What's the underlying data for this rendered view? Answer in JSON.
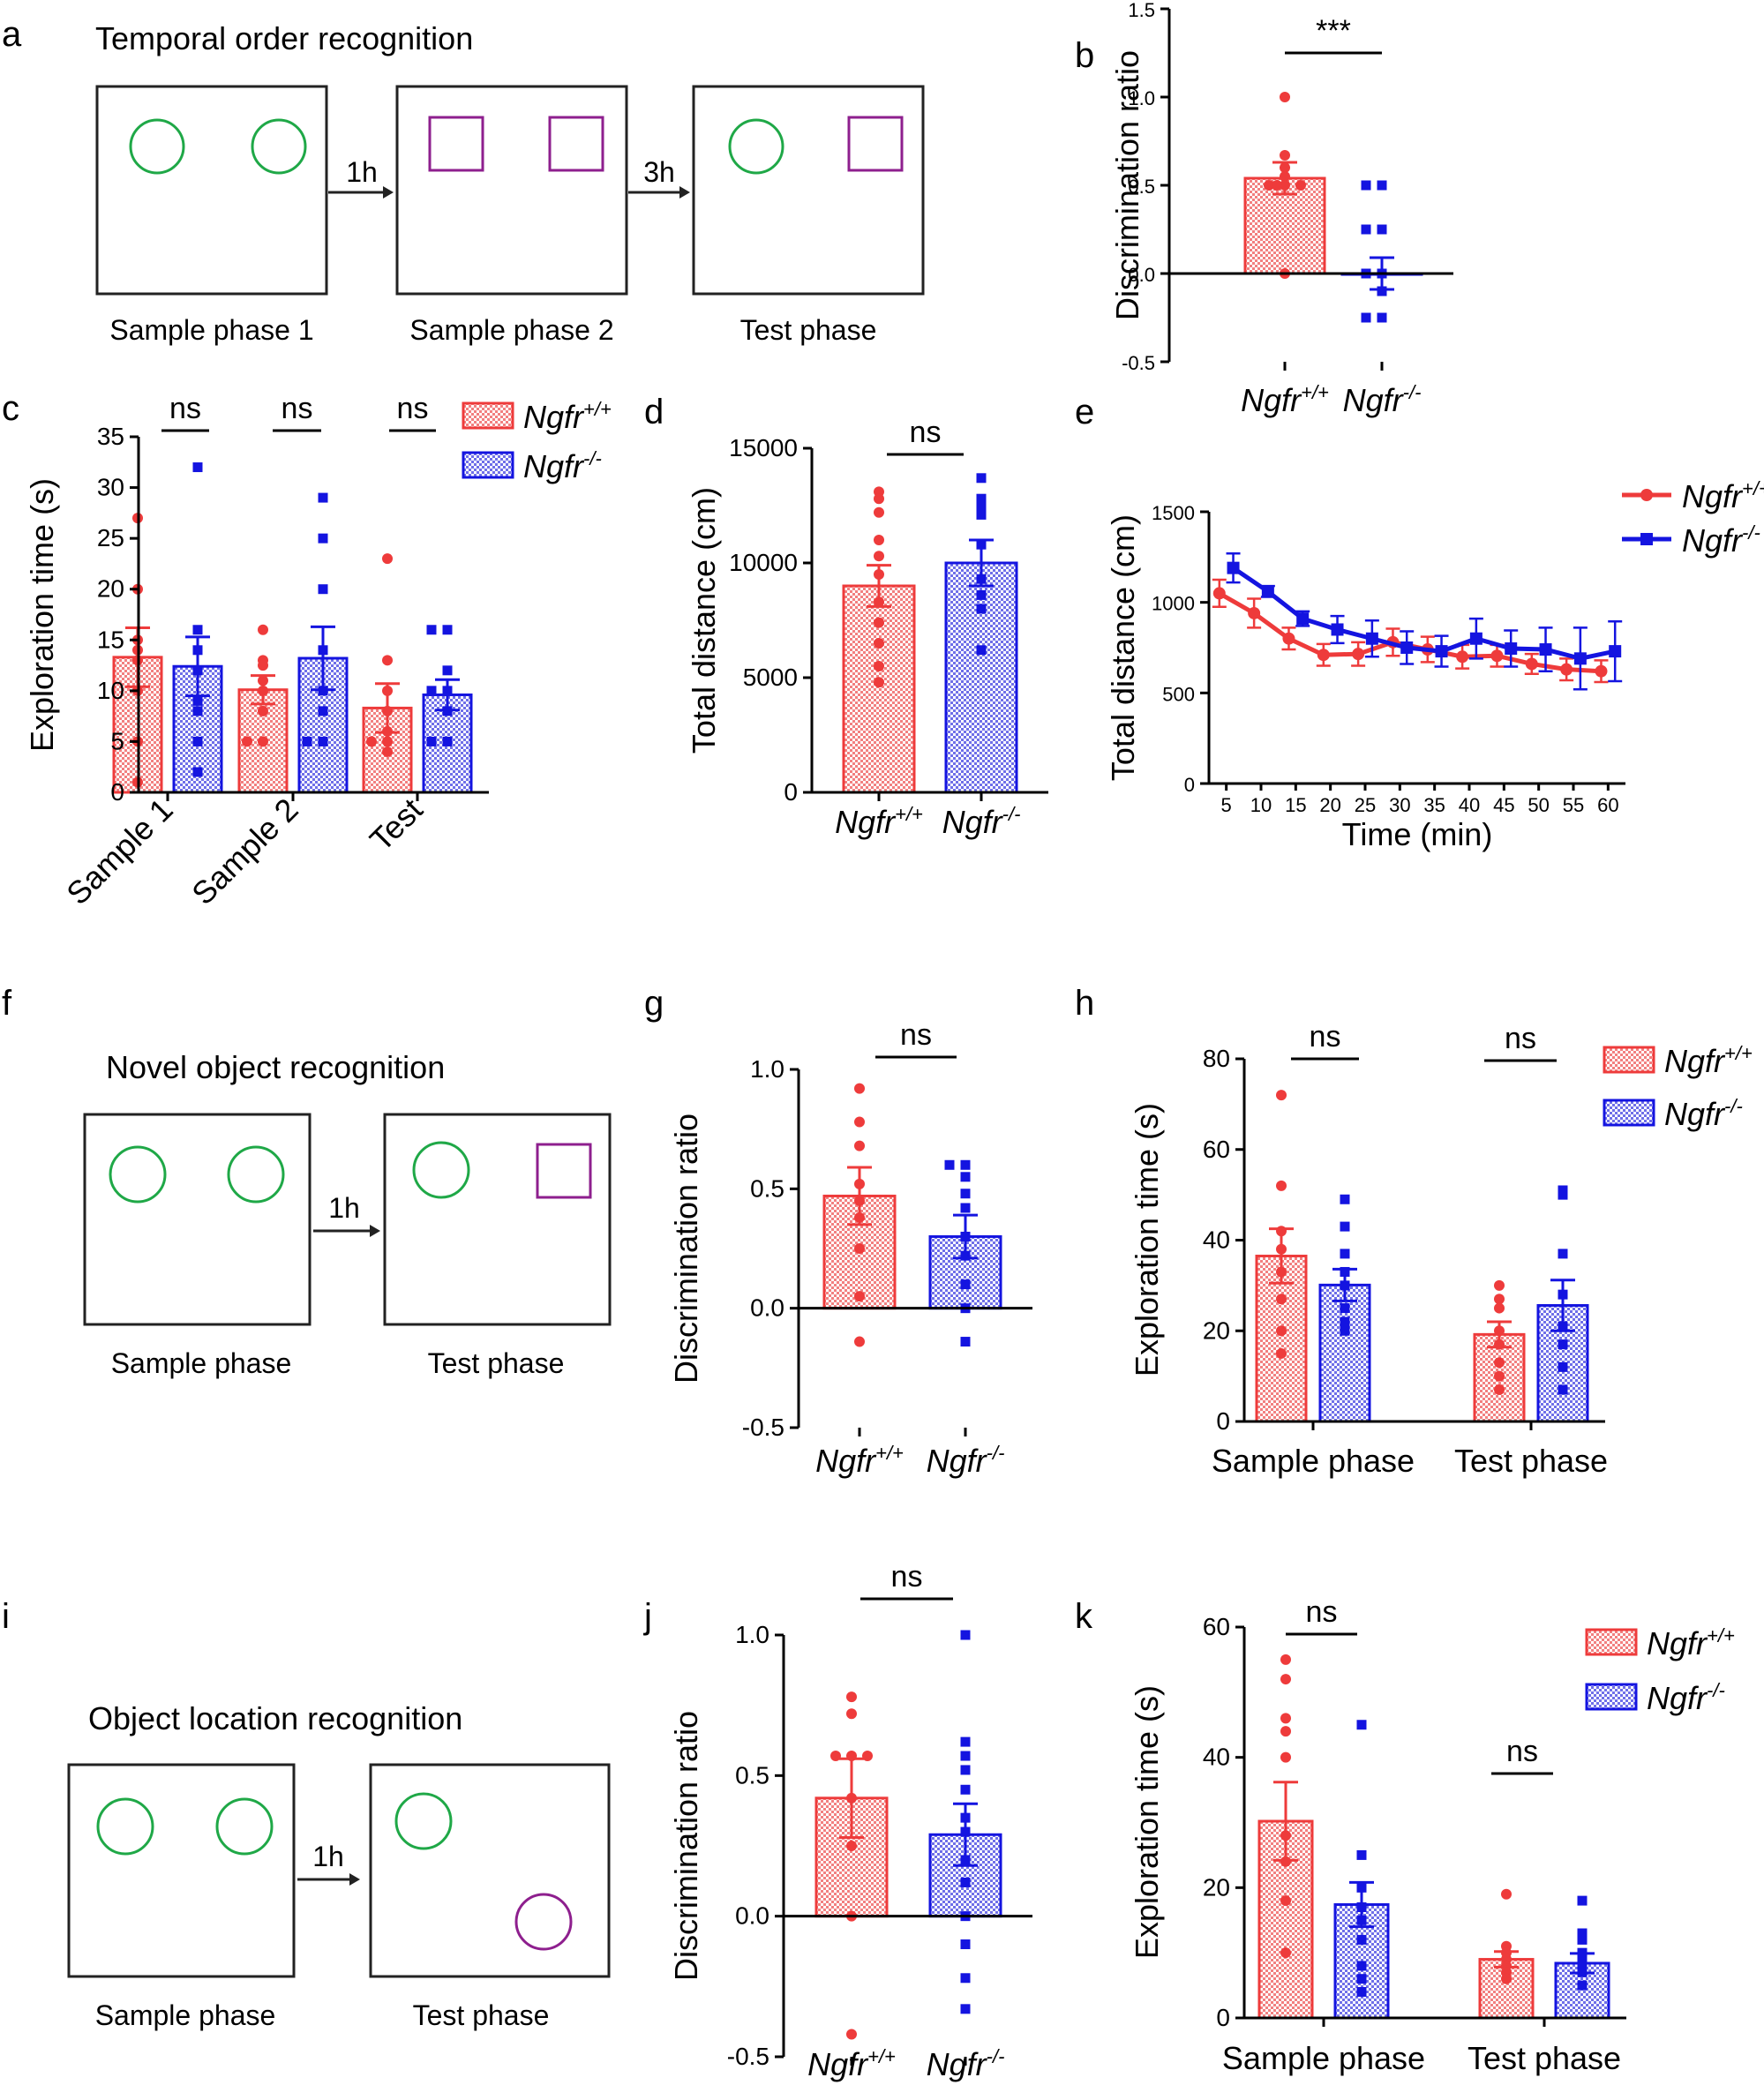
{
  "colors": {
    "wt": "#EE3B3B",
    "ko": "#1414E0",
    "circle": "#1FA847",
    "square": "#8E1F8E",
    "axis": "#000000"
  },
  "schematics": {
    "a": {
      "letter": "a",
      "title": "Temporal order recognition",
      "boxes": [
        {
          "label": "Sample phase 1",
          "objects": [
            "circle-green",
            "circle-green"
          ]
        },
        {
          "label": "Sample phase 2",
          "objects": [
            "square-purple",
            "square-purple"
          ]
        },
        {
          "label": "Test phase",
          "objects": [
            "circle-green",
            "square-purple"
          ]
        }
      ],
      "arrows": [
        "1h",
        "3h"
      ]
    },
    "f": {
      "letter": "f",
      "title": "Novel object recognition",
      "boxes": [
        {
          "label": "Sample phase",
          "objects": [
            "circle-green",
            "circle-green"
          ]
        },
        {
          "label": "Test phase",
          "objects": [
            "circle-green",
            "square-purple"
          ]
        }
      ],
      "arrows": [
        "1h"
      ]
    },
    "i": {
      "letter": "i",
      "title": "Object location recognition",
      "boxes": [
        {
          "label": "Sample phase",
          "objects": [
            "circle-green",
            "circle-green"
          ]
        },
        {
          "label": "Test phase",
          "objects": [
            "circle-green",
            "circle-purple-moved"
          ]
        }
      ],
      "arrows": [
        "1h"
      ]
    }
  },
  "legend": {
    "base": "Ngfr",
    "wt_sup": "+/+",
    "ko_sup": "-/-"
  },
  "chart_data": [
    {
      "id": "b",
      "letter": "b",
      "type": "bar",
      "ylabel": "Discrimination ratio",
      "ylim": [
        -0.5,
        1.5
      ],
      "yticks": [
        -0.5,
        0.0,
        0.5,
        1.0,
        1.5
      ],
      "ytick_labels": [
        "-0.5",
        "0.0",
        "0.5",
        "1.0",
        "1.5"
      ],
      "categories": [
        "Ngfr+/+",
        "Ngfr-/-"
      ],
      "series": [
        {
          "name": "Ngfr+/+",
          "mean": 0.54,
          "sem": 0.09,
          "points": [
            1.0,
            0.67,
            0.6,
            0.55,
            0.5,
            0.5,
            0.5,
            0.5,
            0.0
          ]
        },
        {
          "name": "Ngfr-/-",
          "mean": 0.0,
          "sem": 0.09,
          "points": [
            0.5,
            0.5,
            0.25,
            0.25,
            0.0,
            0.0,
            -0.1,
            -0.25,
            -0.25
          ]
        }
      ],
      "significance": [
        {
          "text": "***"
        }
      ]
    },
    {
      "id": "c",
      "letter": "c",
      "type": "bar",
      "ylabel": "Exploration time (s)",
      "ylim": [
        0,
        35
      ],
      "yticks": [
        0,
        5,
        10,
        15,
        20,
        25,
        30,
        35
      ],
      "ytick_labels": [
        "0",
        "5",
        "10",
        "15",
        "20",
        "25",
        "30",
        "35"
      ],
      "categories": [
        "Sample 1",
        "Sample 2",
        "Test"
      ],
      "series": [
        {
          "name": "Ngfr+/+",
          "values": [
            13.3,
            10.1,
            8.3
          ],
          "sem": [
            2.9,
            1.4,
            2.4
          ],
          "points": [
            [
              27,
              20,
              15,
              14,
              13,
              10,
              5,
              1
            ],
            [
              16,
              13,
              12.5,
              11,
              10,
              8,
              5,
              5
            ],
            [
              23,
              13,
              10,
              8,
              6,
              5,
              5,
              4
            ]
          ]
        },
        {
          "name": "Ngfr-/-",
          "values": [
            12.4,
            13.2,
            9.6
          ],
          "sem": [
            2.9,
            3.1,
            1.5
          ],
          "points": [
            [
              32,
              16,
              14,
              12,
              9,
              8,
              5,
              2
            ],
            [
              29,
              25,
              20,
              14,
              10,
              8,
              5,
              5
            ],
            [
              16,
              16,
              12,
              10,
              10,
              8,
              5,
              5
            ]
          ]
        }
      ],
      "significance": [
        {
          "text": "ns"
        },
        {
          "text": "ns"
        },
        {
          "text": "ns"
        }
      ]
    },
    {
      "id": "d",
      "letter": "d",
      "type": "bar",
      "ylabel": "Total distance (cm)",
      "ylim": [
        0,
        15000
      ],
      "yticks": [
        0,
        5000,
        10000,
        15000
      ],
      "ytick_labels": [
        "0",
        "5000",
        "10000",
        "15000"
      ],
      "categories": [
        "Ngfr+/+",
        "Ngfr-/-"
      ],
      "series": [
        {
          "name": "Ngfr+/+",
          "mean": 9000,
          "sem": 900,
          "points": [
            13100,
            12800,
            12200,
            11000,
            10300,
            9500,
            8300,
            7400,
            6500,
            5500,
            4800
          ]
        },
        {
          "name": "Ngfr-/-",
          "mean": 10000,
          "sem": 1000,
          "points": [
            13700,
            12800,
            12500,
            12100,
            10800,
            9300,
            8000,
            8600,
            6200
          ]
        }
      ],
      "significance": [
        {
          "text": "ns"
        }
      ]
    },
    {
      "id": "e",
      "letter": "e",
      "type": "line",
      "ylabel": "Total distance (cm)",
      "xlabel": "Time (min)",
      "ylim": [
        0,
        1500
      ],
      "yticks": [
        0,
        500,
        1000,
        1500
      ],
      "ytick_labels": [
        "0",
        "500",
        "1000",
        "1500"
      ],
      "xlim": [
        2.5,
        62.5
      ],
      "xticks": [
        5,
        10,
        15,
        20,
        25,
        30,
        35,
        40,
        45,
        50,
        55,
        60
      ],
      "xtick_labels": [
        "5",
        "10",
        "15",
        "20",
        "25",
        "30",
        "35",
        "40",
        "45",
        "50",
        "55",
        "60"
      ],
      "series": [
        {
          "name": "Ngfr+/+",
          "x": [
            4,
            9,
            14,
            19,
            24,
            29,
            34,
            39,
            44,
            49,
            54,
            59
          ],
          "y": [
            1050,
            940,
            800,
            710,
            715,
            780,
            740,
            700,
            705,
            660,
            630,
            620
          ],
          "err": [
            75,
            80,
            60,
            60,
            65,
            75,
            70,
            65,
            60,
            55,
            60,
            60
          ]
        },
        {
          "name": "Ngfr-/-",
          "x": [
            6,
            11,
            16,
            21,
            26,
            31,
            36,
            41,
            46,
            51,
            56,
            61
          ],
          "y": [
            1190,
            1060,
            910,
            850,
            800,
            750,
            730,
            800,
            745,
            740,
            690,
            730
          ],
          "err": [
            80,
            30,
            40,
            75,
            100,
            90,
            85,
            110,
            100,
            120,
            170,
            165
          ]
        }
      ]
    },
    {
      "id": "g",
      "letter": "g",
      "type": "bar",
      "ylabel": "Discrimination ratio",
      "ylim": [
        -0.5,
        1.0
      ],
      "yticks": [
        -0.5,
        0.0,
        0.5,
        1.0
      ],
      "ytick_labels": [
        "-0.5",
        "0.0",
        "0.5",
        "1.0"
      ],
      "categories": [
        "Ngfr+/+",
        "Ngfr-/-"
      ],
      "series": [
        {
          "name": "Ngfr+/+",
          "mean": 0.47,
          "sem": 0.12,
          "points": [
            0.92,
            0.78,
            0.68,
            0.52,
            0.45,
            0.38,
            0.25,
            0.05,
            -0.14
          ]
        },
        {
          "name": "Ngfr-/-",
          "mean": 0.3,
          "sem": 0.09,
          "points": [
            0.6,
            0.6,
            0.55,
            0.48,
            0.42,
            0.3,
            0.22,
            0.1,
            0.0,
            -0.14
          ]
        }
      ],
      "significance": [
        {
          "text": "ns"
        }
      ]
    },
    {
      "id": "h",
      "letter": "h",
      "type": "bar",
      "ylabel": "Exploration time (s)",
      "ylim": [
        0,
        80
      ],
      "yticks": [
        0,
        20,
        40,
        60,
        80
      ],
      "ytick_labels": [
        "0",
        "20",
        "40",
        "60",
        "80"
      ],
      "categories": [
        "Sample phase",
        "Test phase"
      ],
      "series": [
        {
          "name": "Ngfr+/+",
          "values": [
            36.5,
            19.2
          ],
          "sem": [
            6.0,
            2.8
          ],
          "points": [
            [
              72,
              52,
              42,
              38,
              33,
              27,
              20,
              15
            ],
            [
              30,
              27,
              25,
              20,
              17,
              13,
              10,
              7
            ]
          ]
        },
        {
          "name": "Ngfr-/-",
          "values": [
            30.1,
            25.6
          ],
          "sem": [
            3.5,
            5.6
          ],
          "points": [
            [
              49,
              43,
              37,
              33,
              30,
              25,
              22,
              20
            ],
            [
              51,
              50,
              37,
              28,
              21,
              17,
              12,
              7
            ]
          ]
        }
      ],
      "significance": [
        {
          "text": "ns"
        },
        {
          "text": "ns"
        }
      ]
    },
    {
      "id": "j",
      "letter": "j",
      "type": "bar",
      "ylabel": "Discrimination ratio",
      "ylim": [
        -0.5,
        1.0
      ],
      "yticks": [
        -0.5,
        0.0,
        0.5,
        1.0
      ],
      "ytick_labels": [
        "-0.5",
        "0.0",
        "0.5",
        "1.0"
      ],
      "categories": [
        "Ngfr+/+",
        "Ngfr-/-"
      ],
      "series": [
        {
          "name": "Ngfr+/+",
          "mean": 0.42,
          "sem": 0.14,
          "points": [
            0.78,
            0.72,
            0.57,
            0.57,
            0.57,
            0.42,
            0.25,
            0.0,
            -0.42
          ]
        },
        {
          "name": "Ngfr-/-",
          "mean": 0.29,
          "sem": 0.11,
          "points": [
            1.0,
            0.62,
            0.57,
            0.52,
            0.45,
            0.35,
            0.3,
            0.2,
            0.12,
            0.0,
            -0.1,
            -0.22,
            -0.33
          ]
        }
      ],
      "significance": [
        {
          "text": "ns"
        }
      ]
    },
    {
      "id": "k",
      "letter": "k",
      "type": "bar",
      "ylabel": "Exploration time (s)",
      "ylim": [
        0,
        60
      ],
      "yticks": [
        0,
        20,
        40,
        60
      ],
      "ytick_labels": [
        "0",
        "20",
        "40",
        "60"
      ],
      "categories": [
        "Sample phase",
        "Test phase"
      ],
      "series": [
        {
          "name": "Ngfr+/+",
          "values": [
            30.2,
            9.0
          ],
          "sem": [
            6.0,
            1.2
          ],
          "points": [
            [
              55,
              52,
              46,
              44,
              40,
              28,
              24,
              18,
              10
            ],
            [
              19,
              11,
              10,
              9,
              8,
              7,
              6
            ]
          ]
        },
        {
          "name": "Ngfr-/-",
          "values": [
            17.4,
            8.4
          ],
          "sem": [
            3.4,
            1.5
          ],
          "points": [
            [
              45,
              25,
              20,
              17,
              15,
              12,
              8,
              6,
              4
            ],
            [
              18,
              13,
              12,
              10,
              9,
              8,
              7,
              5
            ]
          ]
        }
      ],
      "significance": [
        {
          "text": "ns"
        },
        {
          "text": "ns"
        }
      ]
    }
  ]
}
